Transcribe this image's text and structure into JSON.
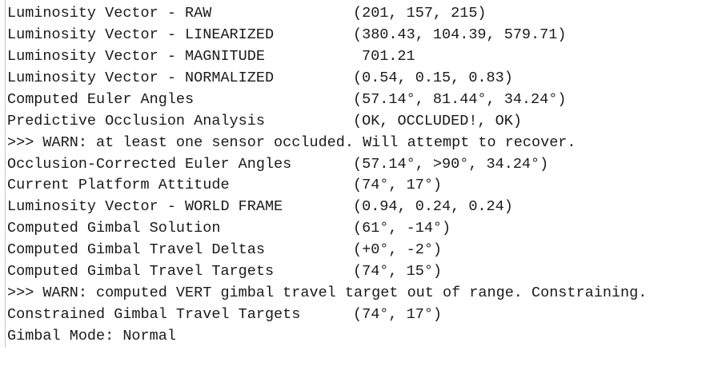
{
  "console": {
    "lines": [
      {
        "label": "Luminosity Vector - RAW",
        "value": "(201, 157, 215)"
      },
      {
        "label": "Luminosity Vector - LINEARIZED",
        "value": "(380.43, 104.39, 579.71)"
      },
      {
        "label": "Luminosity Vector - MAGNITUDE",
        "value": "701.21"
      },
      {
        "label": "Luminosity Vector - NORMALIZED",
        "value": "(0.54, 0.15, 0.83)"
      },
      {
        "label": "Computed Euler Angles",
        "value": "(57.14°, 81.44°, 34.24°)"
      },
      {
        "label": "Predictive Occlusion Analysis",
        "value": "(OK, OCCLUDED!, OK)"
      },
      {
        "warn": ">>> WARN: at least one sensor occluded. Will attempt to recover."
      },
      {
        "label": "Occlusion-Corrected Euler Angles",
        "value": "(57.14°, >90°, 34.24°)"
      },
      {
        "label": "Current Platform Attitude",
        "value": "(74°, 17°)"
      },
      {
        "label": "Luminosity Vector - WORLD FRAME",
        "value": "(0.94, 0.24, 0.24)"
      },
      {
        "label": "Computed Gimbal Solution",
        "value": "(61°, -14°)"
      },
      {
        "label": "Computed Gimbal Travel Deltas",
        "value": "(+0°, -2°)"
      },
      {
        "label": "Computed Gimbal Travel Targets",
        "value": "(74°, 15°)"
      },
      {
        "warn": ">>> WARN: computed VERT gimbal travel target out of range. Constraining."
      },
      {
        "label": "Constrained Gimbal Travel Targets",
        "value": "(74°, 17°)"
      },
      {
        "warn": "Gimbal Mode: Normal"
      }
    ]
  }
}
